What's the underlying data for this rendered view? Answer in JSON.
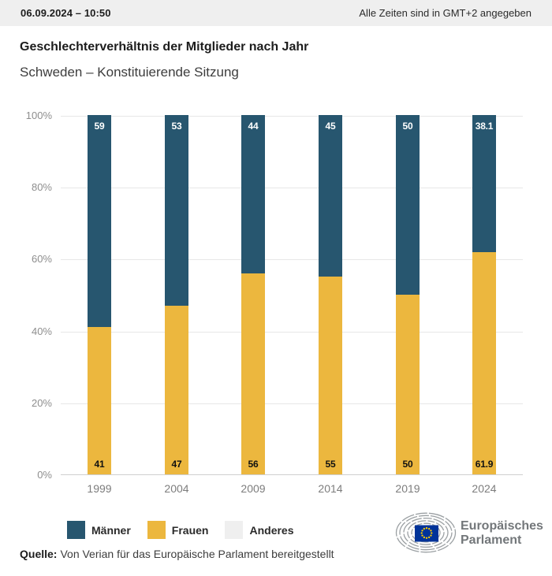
{
  "header": {
    "datetime": "06.09.2024 – 10:50",
    "timezone_note": "Alle Zeiten sind in GMT+2 angegeben"
  },
  "title": "Geschlechterverhältnis der Mitglieder nach Jahr",
  "subtitle": "Schweden – Konstituierende Sitzung",
  "chart_data": {
    "type": "bar",
    "stacked": true,
    "unit": "%",
    "title": "Geschlechterverhältnis der Mitglieder nach Jahr",
    "subtitle": "Schweden – Konstituierende Sitzung",
    "categories": [
      "1999",
      "2004",
      "2009",
      "2014",
      "2019",
      "2024"
    ],
    "series": [
      {
        "name": "Männer",
        "key": "maenner",
        "color": "#27566f",
        "values": [
          59,
          53,
          44,
          45,
          50,
          38.1
        ]
      },
      {
        "name": "Frauen",
        "key": "frauen",
        "color": "#ecb73e",
        "values": [
          41,
          47,
          56,
          55,
          50,
          61.9
        ]
      },
      {
        "name": "Anderes",
        "key": "anderes",
        "color": "#efefef",
        "values": [
          0,
          0,
          0,
          0,
          0,
          0
        ]
      }
    ],
    "xlabel": "",
    "ylabel": "",
    "ylim": [
      0,
      100
    ],
    "yticks": [
      "0%",
      "20%",
      "40%",
      "60%",
      "80%",
      "100%"
    ],
    "grid": true,
    "legend_position": "bottom",
    "value_label_colors": {
      "maenner": "#ffffff",
      "frauen": "#111111"
    }
  },
  "legend": {
    "items": [
      {
        "label": "Männer",
        "key": "maenner",
        "color": "#27566f"
      },
      {
        "label": "Frauen",
        "key": "frauen",
        "color": "#ecb73e"
      },
      {
        "label": "Anderes",
        "key": "anderes",
        "color": "#efefef"
      }
    ]
  },
  "source": {
    "label": "Quelle:",
    "text": "Von Verian für das Europäische Parlament bereitgestellt"
  },
  "logo": {
    "line1": "Europäisches",
    "line2": "Parlament"
  },
  "colors": {
    "maenner": "#27566f",
    "frauen": "#ecb73e",
    "anderes": "#efefef",
    "flag_blue": "#003399",
    "flag_stars": "#ffcc00",
    "header_bg": "#efefef"
  }
}
